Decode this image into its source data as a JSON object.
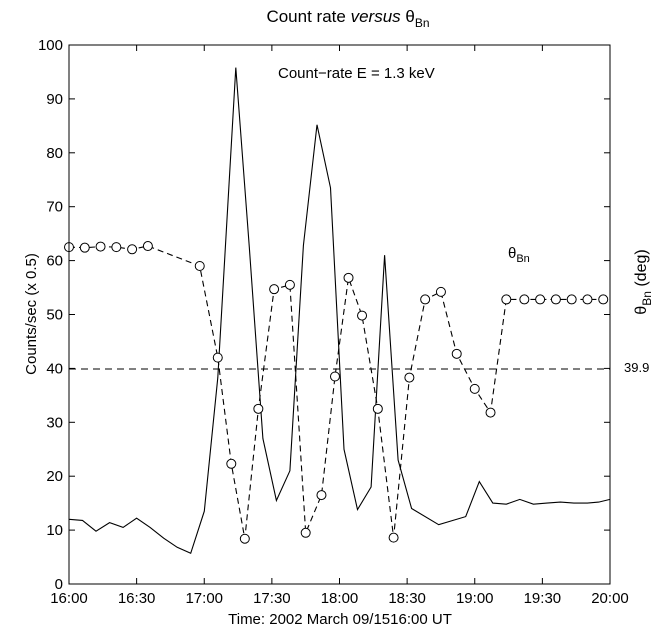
{
  "chart_data": {
    "type": "line",
    "title": {
      "main": "Count rate",
      "italic": "versus",
      "theta": "θ",
      "sub": "Bn"
    },
    "xlabel": "Time: 2002 March 09/1516:00 UT",
    "ylabel": "Counts/sec (x 0.5)",
    "right_label": {
      "theta": "θ",
      "sub": "Bn",
      "unit": " (deg)"
    },
    "xlim": [
      0,
      240
    ],
    "ylim": [
      0,
      100
    ],
    "x_ticks": [
      {
        "value": 0,
        "label": "16:00"
      },
      {
        "value": 30,
        "label": "16:30"
      },
      {
        "value": 60,
        "label": "17:00"
      },
      {
        "value": 90,
        "label": "17:30"
      },
      {
        "value": 120,
        "label": "18:00"
      },
      {
        "value": 150,
        "label": "18:30"
      },
      {
        "value": 180,
        "label": "19:00"
      },
      {
        "value": 210,
        "label": "19:30"
      },
      {
        "value": 240,
        "label": "20:00"
      }
    ],
    "y_ticks": [
      0,
      10,
      20,
      30,
      40,
      50,
      60,
      70,
      80,
      90,
      100
    ],
    "grid": false,
    "annotations": {
      "count_rate": "Count−rate  E = 1.3 keV",
      "theta_label": {
        "theta": "θ",
        "sub": "Bn"
      },
      "reference_value": "39.9"
    },
    "reference_line": {
      "y": 39.9,
      "style": "dashed"
    },
    "series": [
      {
        "name": "Count−rate  E = 1.3 keV",
        "style": "solid",
        "color": "#000000",
        "x": [
          0,
          6,
          12,
          18,
          24,
          30,
          36,
          42,
          48,
          54,
          60,
          66,
          74,
          80,
          86,
          92,
          98,
          104,
          110,
          116,
          122,
          128,
          134,
          140,
          146,
          152,
          164,
          176,
          182,
          188,
          194,
          200,
          206,
          212,
          218,
          224,
          230,
          235,
          240
        ],
        "y": [
          12,
          11.8,
          9.8,
          11.4,
          10.5,
          12.2,
          10.5,
          8.5,
          6.8,
          5.7,
          13.5,
          38.3,
          95.8,
          62.5,
          27,
          15.5,
          21,
          62.8,
          85.2,
          73.5,
          25,
          13.8,
          18,
          61,
          23,
          14,
          11,
          12.5,
          19,
          15,
          14.8,
          15.7,
          14.8,
          15,
          15.2,
          15,
          15,
          15.2,
          15.7
        ]
      },
      {
        "name": "θBn",
        "style": "dashed",
        "marker": "circle",
        "color": "#000000",
        "x": [
          0,
          7,
          14,
          21,
          28,
          35,
          58,
          66,
          72,
          78,
          84,
          91,
          98,
          105,
          112,
          118,
          124,
          130,
          137,
          144,
          151,
          158,
          165,
          172,
          180,
          187,
          194,
          202,
          209,
          216,
          223,
          230,
          237
        ],
        "y": [
          62.5,
          62.4,
          62.6,
          62.5,
          62.1,
          62.7,
          59,
          42,
          22.3,
          8.4,
          32.5,
          54.7,
          55.5,
          9.5,
          16.5,
          38.5,
          56.8,
          49.8,
          32.5,
          8.6,
          38.3,
          52.8,
          54.2,
          42.7,
          36.2,
          31.8,
          52.8,
          52.8,
          52.8,
          52.8,
          52.8,
          52.8,
          52.8
        ]
      }
    ]
  }
}
